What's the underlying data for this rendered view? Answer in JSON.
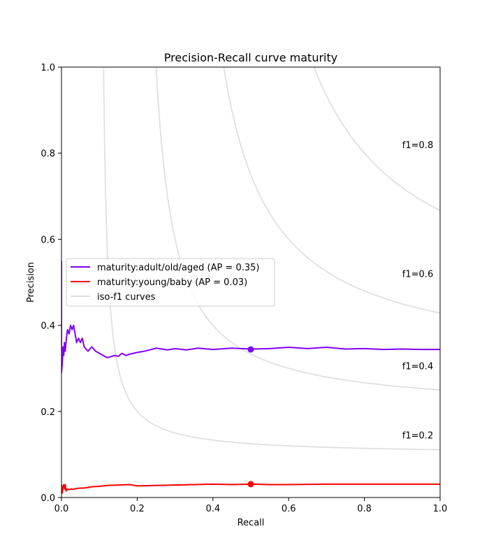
{
  "chart_data": {
    "type": "line",
    "title": "Precision-Recall curve maturity",
    "xlabel": "Recall",
    "ylabel": "Precision",
    "xlim": [
      0.0,
      1.0
    ],
    "ylim": [
      0.0,
      1.0
    ],
    "xticks": [
      0.0,
      0.2,
      0.4,
      0.6,
      0.8,
      1.0
    ],
    "yticks": [
      0.0,
      0.2,
      0.4,
      0.6,
      0.8,
      1.0
    ],
    "xtick_labels": [
      "0.0",
      "0.2",
      "0.4",
      "0.6",
      "0.8",
      "1.0"
    ],
    "ytick_labels": [
      "0.0",
      "0.2",
      "0.4",
      "0.6",
      "0.8",
      "1.0"
    ],
    "grid": false,
    "legend_position": "center-left",
    "iso_f1": {
      "values": [
        0.2,
        0.4,
        0.6,
        0.8
      ],
      "labels": [
        "f1=0.2",
        "f1=0.4",
        "f1=0.6",
        "f1=0.8"
      ],
      "color": "#e0e0e0",
      "legend_label": "iso-f1 curves"
    },
    "series": [
      {
        "name": "maturity:adult/old/aged (AP = 0.35)",
        "color": "#7f00ff",
        "x": [
          0.0,
          0.0,
          0.002,
          0.004,
          0.006,
          0.008,
          0.01,
          0.013,
          0.016,
          0.02,
          0.024,
          0.028,
          0.032,
          0.036,
          0.04,
          0.045,
          0.05,
          0.055,
          0.06,
          0.065,
          0.07,
          0.08,
          0.09,
          0.1,
          0.11,
          0.12,
          0.13,
          0.14,
          0.15,
          0.16,
          0.17,
          0.18,
          0.2,
          0.22,
          0.25,
          0.28,
          0.3,
          0.33,
          0.36,
          0.4,
          0.45,
          0.5,
          0.55,
          0.6,
          0.65,
          0.7,
          0.75,
          0.8,
          0.85,
          0.9,
          0.95,
          1.0
        ],
        "y": [
          0.55,
          0.29,
          0.31,
          0.35,
          0.33,
          0.36,
          0.34,
          0.37,
          0.39,
          0.38,
          0.4,
          0.39,
          0.4,
          0.38,
          0.36,
          0.37,
          0.36,
          0.37,
          0.35,
          0.345,
          0.34,
          0.35,
          0.34,
          0.335,
          0.33,
          0.325,
          0.327,
          0.33,
          0.328,
          0.335,
          0.33,
          0.333,
          0.337,
          0.34,
          0.347,
          0.343,
          0.346,
          0.343,
          0.347,
          0.344,
          0.347,
          0.345,
          0.346,
          0.349,
          0.346,
          0.349,
          0.345,
          0.346,
          0.344,
          0.345,
          0.344,
          0.344
        ],
        "marker": {
          "x": 0.5,
          "y": 0.344
        }
      },
      {
        "name": "maturity:young/baby (AP = 0.03)",
        "color": "#ff0000",
        "x": [
          0.0,
          0.002,
          0.004,
          0.006,
          0.008,
          0.01,
          0.012,
          0.015,
          0.02,
          0.025,
          0.03,
          0.04,
          0.05,
          0.06,
          0.08,
          0.1,
          0.12,
          0.15,
          0.18,
          0.2,
          0.25,
          0.3,
          0.35,
          0.4,
          0.45,
          0.5,
          0.55,
          0.6,
          0.7,
          0.8,
          0.9,
          1.0
        ],
        "y": [
          0.03,
          0.01,
          0.025,
          0.03,
          0.02,
          0.03,
          0.015,
          0.02,
          0.018,
          0.02,
          0.019,
          0.021,
          0.022,
          0.022,
          0.025,
          0.026,
          0.028,
          0.029,
          0.03,
          0.027,
          0.028,
          0.029,
          0.03,
          0.031,
          0.03,
          0.031,
          0.03,
          0.03,
          0.031,
          0.031,
          0.031,
          0.031
        ],
        "marker": {
          "x": 0.5,
          "y": 0.031
        }
      }
    ]
  }
}
